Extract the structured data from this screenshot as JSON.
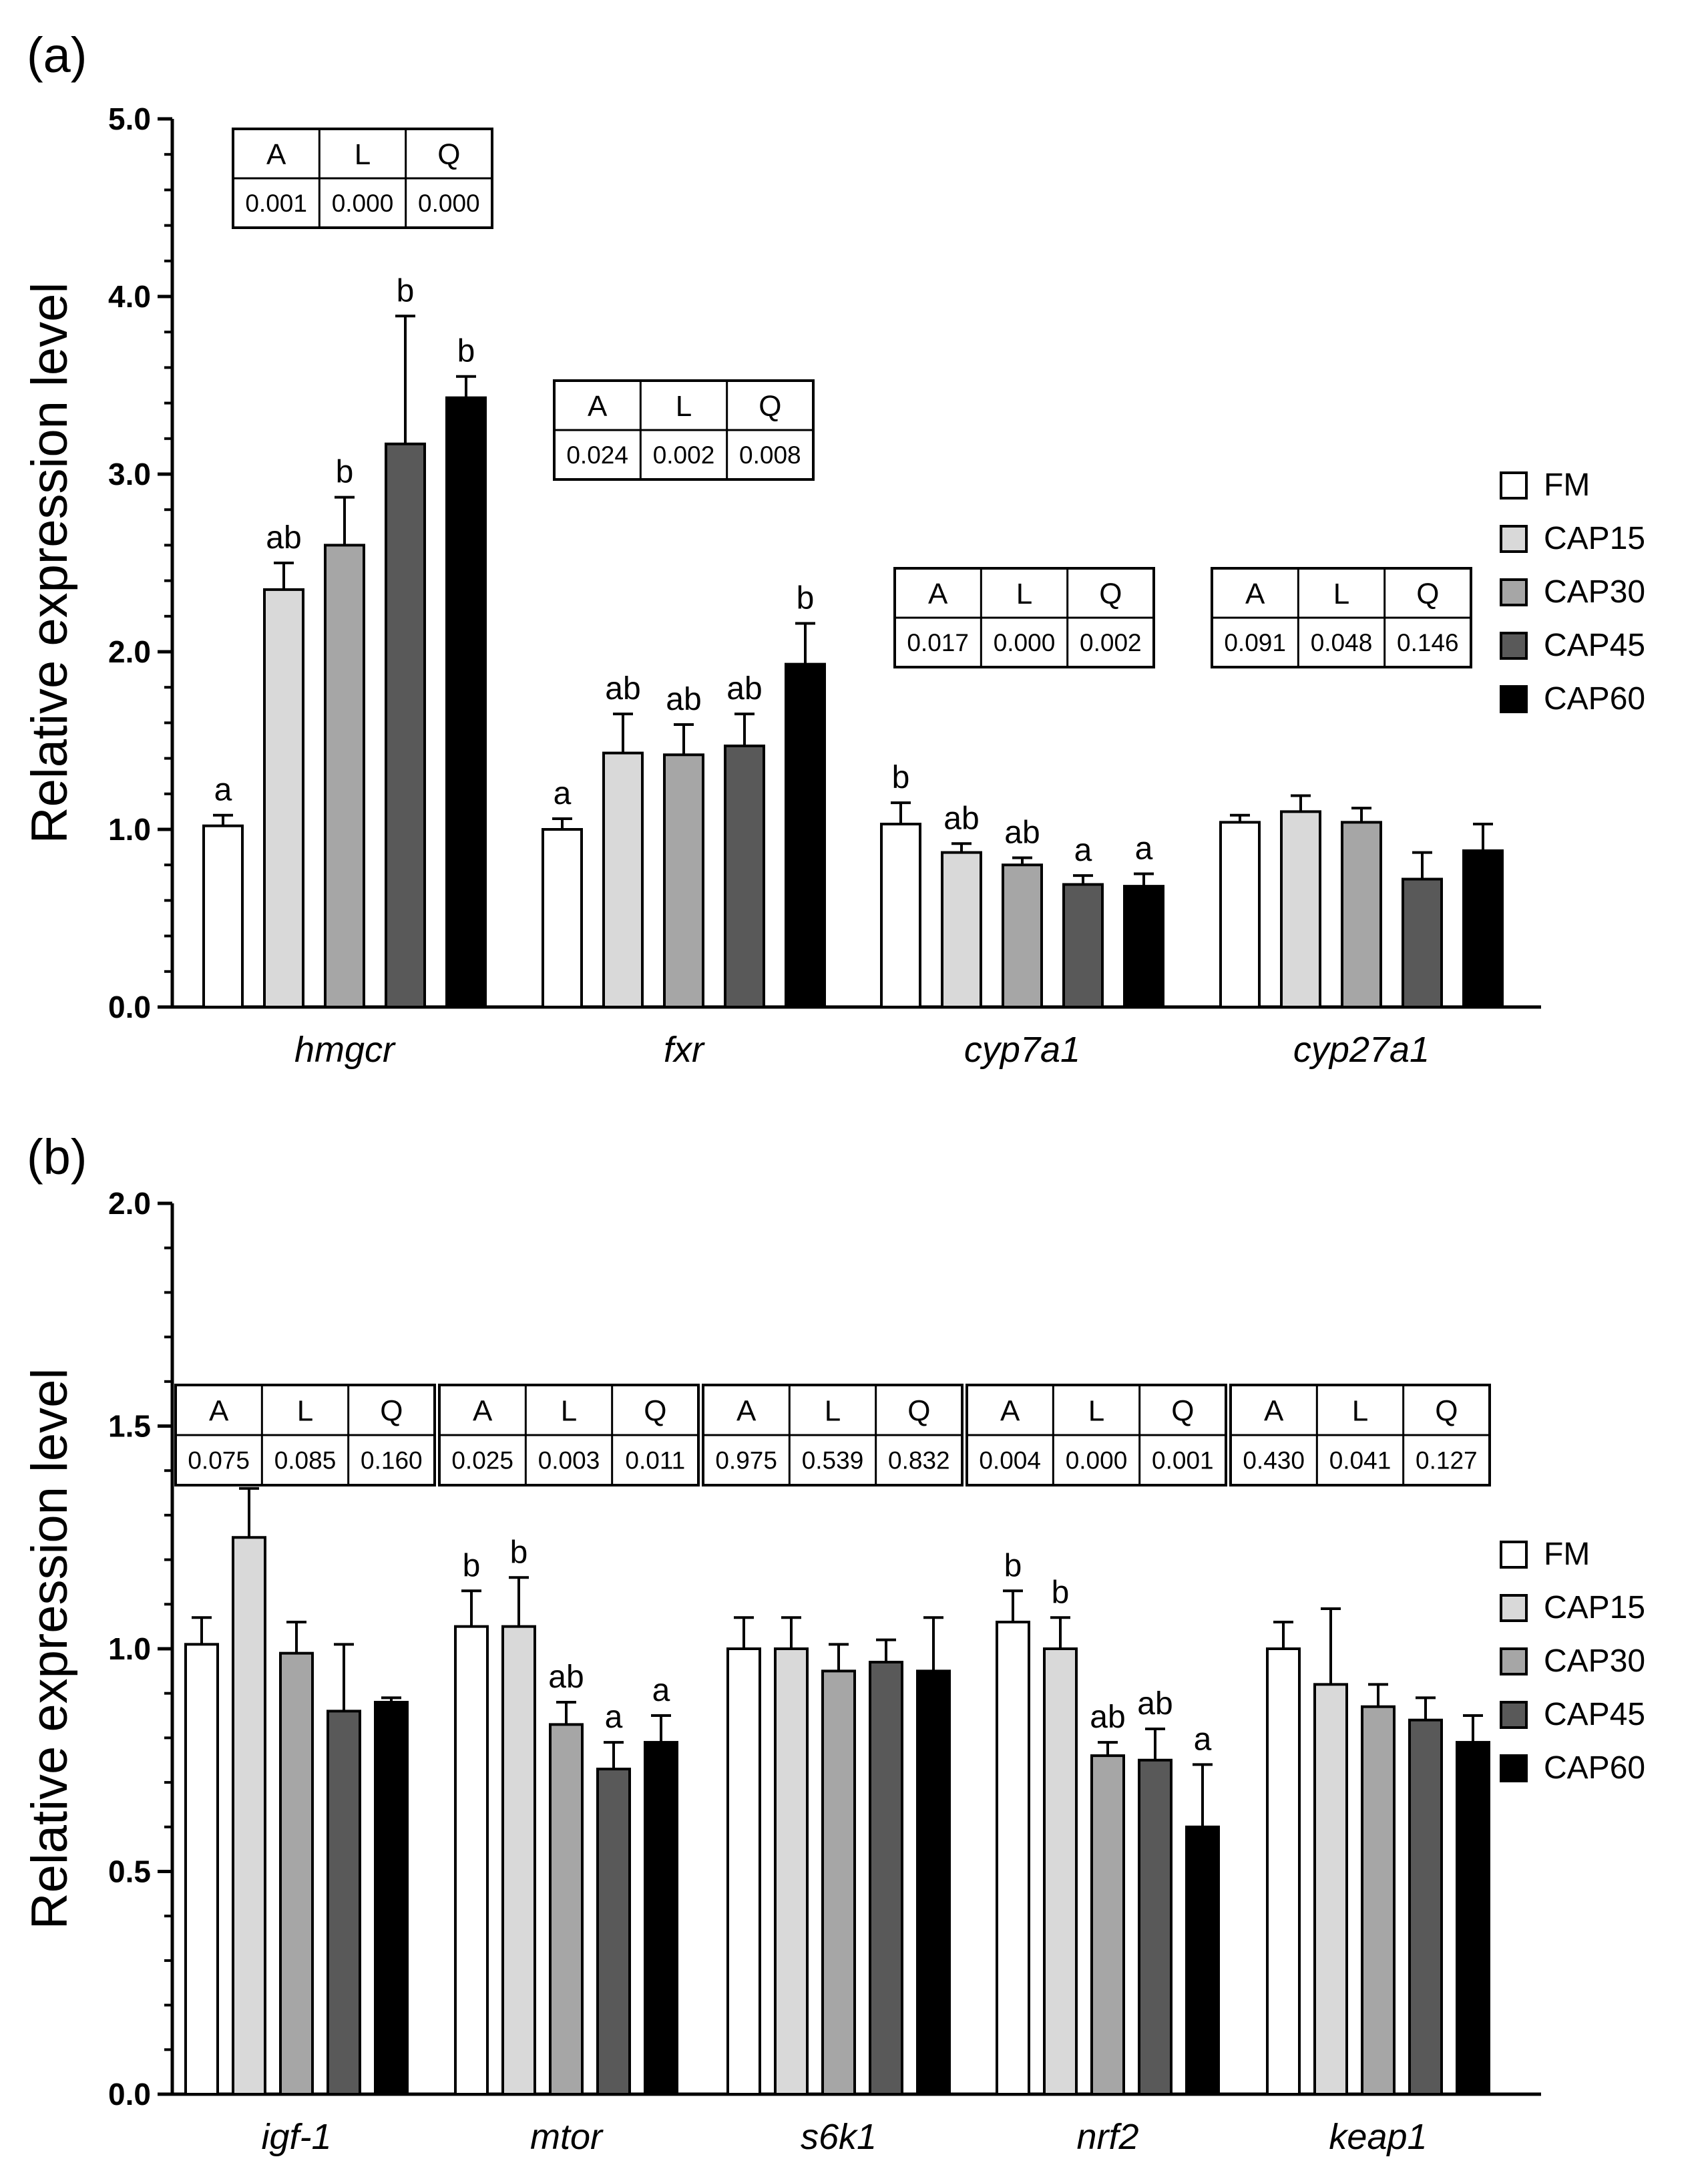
{
  "legend": [
    {
      "name": "FM",
      "color": "#ffffff"
    },
    {
      "name": "CAP15",
      "color": "#d9d9d9"
    },
    {
      "name": "CAP30",
      "color": "#a6a6a6"
    },
    {
      "name": "CAP45",
      "color": "#595959"
    },
    {
      "name": "CAP60",
      "color": "#000000"
    }
  ],
  "chart_data": [
    {
      "type": "bar",
      "panel_label": "(a)",
      "ylabel": "Relative expression level",
      "ylim": [
        0,
        5
      ],
      "yticks": [
        "0.0",
        "1.0",
        "2.0",
        "3.0",
        "4.0",
        "5.0"
      ],
      "categories": [
        "hmgcr",
        "fxr",
        "cyp7a1",
        "cyp27a1"
      ],
      "series": [
        {
          "name": "FM",
          "values": [
            1.02,
            1.0,
            1.03,
            1.04
          ],
          "errors": [
            0.06,
            0.06,
            0.12,
            0.04
          ],
          "letters": [
            "a",
            "a",
            "b",
            ""
          ]
        },
        {
          "name": "CAP15",
          "values": [
            2.35,
            1.43,
            0.87,
            1.1
          ],
          "errors": [
            0.15,
            0.22,
            0.05,
            0.09
          ],
          "letters": [
            "ab",
            "ab",
            "ab",
            ""
          ]
        },
        {
          "name": "CAP30",
          "values": [
            2.6,
            1.42,
            0.8,
            1.04
          ],
          "errors": [
            0.27,
            0.17,
            0.04,
            0.08
          ],
          "letters": [
            "b",
            "ab",
            "ab",
            ""
          ]
        },
        {
          "name": "CAP45",
          "values": [
            3.17,
            1.47,
            0.69,
            0.72
          ],
          "errors": [
            0.72,
            0.18,
            0.05,
            0.15
          ],
          "letters": [
            "b",
            "ab",
            "a",
            ""
          ]
        },
        {
          "name": "CAP60",
          "values": [
            3.43,
            1.93,
            0.68,
            0.88
          ],
          "errors": [
            0.12,
            0.23,
            0.07,
            0.15
          ],
          "letters": [
            "b",
            "b",
            "a",
            ""
          ]
        }
      ],
      "tables": [
        {
          "headers": [
            "A",
            "L",
            "Q"
          ],
          "values": [
            "0.001",
            "0.000",
            "0.000"
          ]
        },
        {
          "headers": [
            "A",
            "L",
            "Q"
          ],
          "values": [
            "0.024",
            "0.002",
            "0.008"
          ]
        },
        {
          "headers": [
            "A",
            "L",
            "Q"
          ],
          "values": [
            "0.017",
            "0.000",
            "0.002"
          ]
        },
        {
          "headers": [
            "A",
            "L",
            "Q"
          ],
          "values": [
            "0.091",
            "0.048",
            "0.146"
          ]
        }
      ]
    },
    {
      "type": "bar",
      "panel_label": "(b)",
      "ylabel": "Relative expression level",
      "ylim": [
        0,
        2
      ],
      "yticks": [
        "0.0",
        "0.5",
        "1.0",
        "1.5",
        "2.0"
      ],
      "categories": [
        "igf-1",
        "mtor",
        "s6k1",
        "nrf2",
        "keap1"
      ],
      "series": [
        {
          "name": "FM",
          "values": [
            1.01,
            1.05,
            1.0,
            1.06,
            1.0
          ],
          "errors": [
            0.06,
            0.08,
            0.07,
            0.07,
            0.06
          ],
          "letters": [
            "",
            "b",
            "",
            "b",
            ""
          ]
        },
        {
          "name": "CAP15",
          "values": [
            1.25,
            1.05,
            1.0,
            1.0,
            0.92
          ],
          "errors": [
            0.11,
            0.11,
            0.07,
            0.07,
            0.17
          ],
          "letters": [
            "",
            "b",
            "",
            "b",
            ""
          ]
        },
        {
          "name": "CAP30",
          "values": [
            0.99,
            0.83,
            0.95,
            0.76,
            0.87
          ],
          "errors": [
            0.07,
            0.05,
            0.06,
            0.03,
            0.05
          ],
          "letters": [
            "",
            "ab",
            "",
            "ab",
            ""
          ]
        },
        {
          "name": "CAP45",
          "values": [
            0.86,
            0.73,
            0.97,
            0.75,
            0.84
          ],
          "errors": [
            0.15,
            0.06,
            0.05,
            0.07,
            0.05
          ],
          "letters": [
            "",
            "a",
            "",
            "ab",
            ""
          ]
        },
        {
          "name": "CAP60",
          "values": [
            0.88,
            0.79,
            0.95,
            0.6,
            0.79
          ],
          "errors": [
            0.01,
            0.06,
            0.12,
            0.14,
            0.06
          ],
          "letters": [
            "",
            "a",
            "",
            "a",
            ""
          ]
        }
      ],
      "tables": [
        {
          "headers": [
            "A",
            "L",
            "Q"
          ],
          "values": [
            "0.075",
            "0.085",
            "0.160"
          ]
        },
        {
          "headers": [
            "A",
            "L",
            "Q"
          ],
          "values": [
            "0.025",
            "0.003",
            "0.011"
          ]
        },
        {
          "headers": [
            "A",
            "L",
            "Q"
          ],
          "values": [
            "0.975",
            "0.539",
            "0.832"
          ]
        },
        {
          "headers": [
            "A",
            "L",
            "Q"
          ],
          "values": [
            "0.004",
            "0.000",
            "0.001"
          ]
        },
        {
          "headers": [
            "A",
            "L",
            "Q"
          ],
          "values": [
            "0.430",
            "0.041",
            "0.127"
          ]
        }
      ]
    }
  ]
}
